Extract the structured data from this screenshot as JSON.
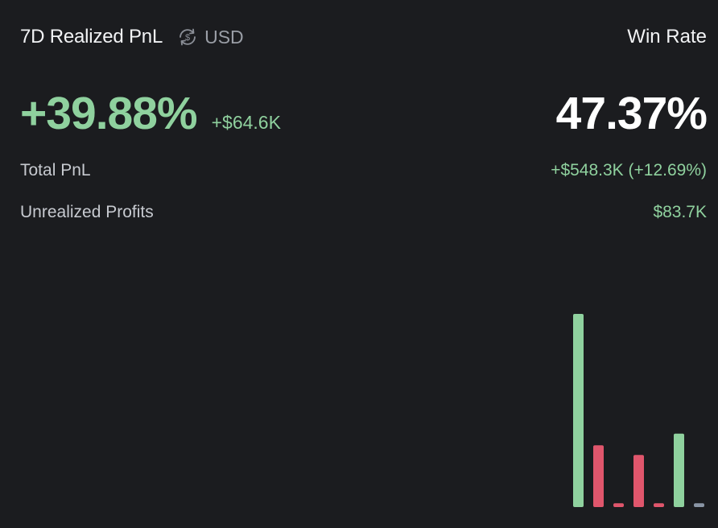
{
  "header": {
    "title": "7D Realized PnL",
    "currency_icon": "currency-swap-icon",
    "currency": "USD",
    "win_rate_label": "Win Rate"
  },
  "pnl": {
    "percent": "+39.88%",
    "amount": "+$64.6K"
  },
  "win_rate": {
    "value": "47.37%"
  },
  "stats": {
    "total_pnl_label": "Total PnL",
    "total_pnl_value": "+$548.3K (+12.69%)",
    "unrealized_label": "Unrealized Profits",
    "unrealized_value": "$83.7K"
  },
  "colors": {
    "positive": "#8fd19e",
    "negative": "#e0566c",
    "neutral": "#8a95a5",
    "background": "#1b1c1f"
  },
  "chart_data": {
    "type": "bar",
    "values": [
      100,
      32,
      2,
      27,
      2,
      38,
      2
    ],
    "signs": [
      "positive",
      "negative",
      "negative",
      "negative",
      "negative",
      "positive",
      "neutral"
    ],
    "ylim": [
      0,
      100
    ]
  }
}
